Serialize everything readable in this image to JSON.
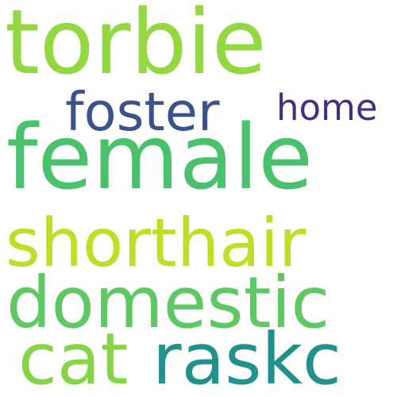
{
  "words": [
    {
      "text": "torbie",
      "color": "#93d741"
    },
    {
      "text": "female",
      "color": "#4ac16d"
    },
    {
      "text": "foster",
      "color": "#3b528b"
    },
    {
      "text": "home",
      "color": "#472e7c"
    },
    {
      "text": "shorthair",
      "color": "#bddf26"
    },
    {
      "text": "domestic",
      "color": "#5ec962"
    },
    {
      "text": "cat",
      "color": "#86d549"
    },
    {
      "text": "raskc",
      "color": "#21918c"
    }
  ]
}
